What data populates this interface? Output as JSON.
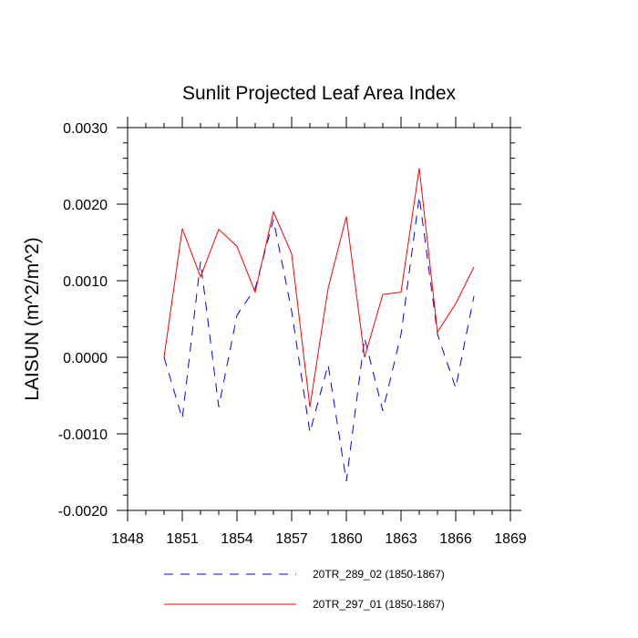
{
  "chart_data": {
    "type": "line",
    "title": "Sunlit Projected Leaf Area Index",
    "ylabel": "LAISUN  (m^2/m^2)",
    "xlabel": "",
    "xlim": [
      1848,
      1869
    ],
    "ylim": [
      -0.002,
      0.003
    ],
    "xticks": [
      "1848",
      "1851",
      "1854",
      "1857",
      "1860",
      "1863",
      "1866",
      "1869"
    ],
    "yticks": [
      "-0.0020",
      "-0.0010",
      "0.0000",
      "0.0010",
      "0.0020",
      "0.0030"
    ],
    "x": [
      1850,
      1851,
      1852,
      1853,
      1854,
      1855,
      1856,
      1857,
      1858,
      1859,
      1860,
      1861,
      1862,
      1863,
      1864,
      1865,
      1866,
      1867
    ],
    "series": [
      {
        "name": "20TR_289_02 (1850-1867)",
        "color": "#0000ff",
        "dash": "dashed",
        "values": [
          0.0,
          -0.0008,
          0.00125,
          -0.00065,
          0.00055,
          0.0009,
          0.0018,
          0.0006,
          -0.00098,
          -0.0001,
          -0.00162,
          0.00025,
          -0.0007,
          0.0003,
          0.0021,
          0.0003,
          -0.0004,
          0.0008
        ]
      },
      {
        "name": "20TR_297_01 (1850-1867)",
        "color": "#ff0000",
        "dash": "solid",
        "values": [
          0.0,
          0.00168,
          0.00105,
          0.00167,
          0.00145,
          0.00085,
          0.0019,
          0.00135,
          -0.00065,
          0.0009,
          0.00184,
          0.0,
          0.00082,
          0.00085,
          0.00247,
          0.00033,
          0.0007,
          0.00118
        ]
      }
    ]
  }
}
